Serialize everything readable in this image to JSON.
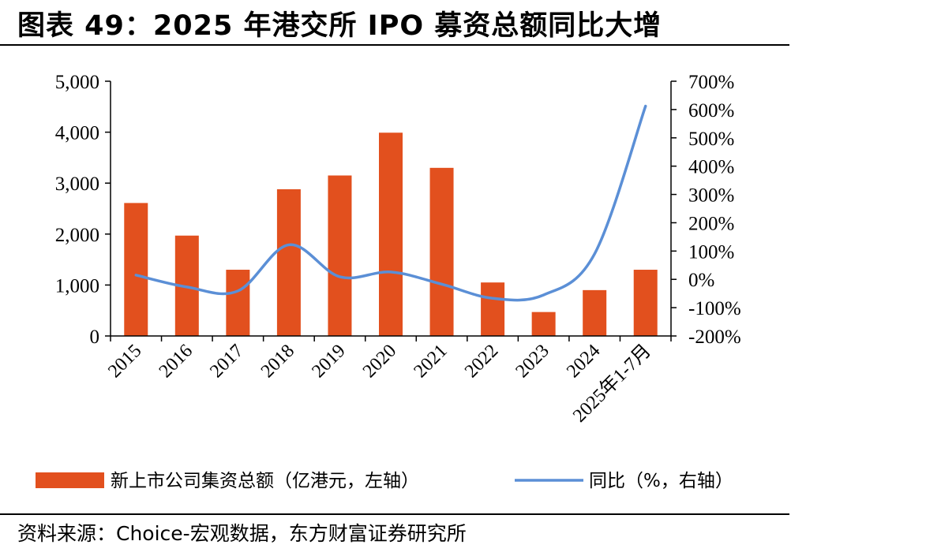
{
  "title": "图表 49：2025 年港交所 IPO 募资总额同比大增",
  "source": "资料来源：Choice-宏观数据，东方财富证券研究所",
  "colors": {
    "bar": "#E2501E",
    "line": "#5B8FD6",
    "axis": "#000000"
  },
  "chart_data": {
    "type": "bar",
    "categories": [
      "2015",
      "2016",
      "2017",
      "2018",
      "2019",
      "2020",
      "2021",
      "2022",
      "2023",
      "2024",
      "2025年1-7月"
    ],
    "series": [
      {
        "name": "新上市公司集资总额（亿港元，左轴）",
        "type": "bar",
        "axis": "left",
        "values": [
          2610,
          1970,
          1300,
          2880,
          3150,
          3990,
          3300,
          1050,
          470,
          900,
          1300
        ]
      },
      {
        "name": "同比（%，右轴）",
        "type": "line",
        "axis": "right",
        "values": [
          15,
          -27,
          -41,
          122,
          9,
          26,
          -17,
          -67,
          -55,
          90,
          612
        ]
      }
    ],
    "y_left": {
      "min": 0,
      "max": 5000,
      "ticks": [
        "0",
        "1,000",
        "2,000",
        "3,000",
        "4,000",
        "5,000"
      ]
    },
    "y_right": {
      "min": -200,
      "max": 700,
      "ticks": [
        "-200%",
        "-100%",
        "0%",
        "100%",
        "200%",
        "300%",
        "400%",
        "500%",
        "600%",
        "700%"
      ]
    },
    "legend": "bottom"
  }
}
